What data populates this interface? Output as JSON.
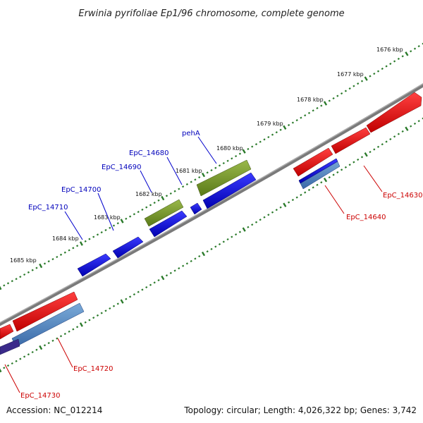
{
  "title": "Erwinia pyrifoliae Ep1/96 chromosome, complete genome",
  "accession": "Accession: NC_012214",
  "summary": "Topology: circular; Length: 4,026,322 bp; Genes: 3,742",
  "kbp_ticks": [
    "1676 kbp",
    "1677 kbp",
    "1678 kbp",
    "1679 kbp",
    "1680 kbp",
    "1681 kbp",
    "1682 kbp",
    "1683 kbp",
    "1684 kbp",
    "1685 kbp"
  ],
  "genes_upper": [
    {
      "label": "pehA",
      "label_color": "#0000bb",
      "fill": "#7a9a2a"
    },
    {
      "label": "EpC_14680",
      "label_color": "#0000bb",
      "fill": "#0000dd"
    },
    {
      "label": "EpC_14690",
      "label_color": "#0000bb",
      "fill": "#7a9a2a"
    },
    {
      "label": "EpC_14700",
      "label_color": "#0000bb",
      "fill": "#0000dd"
    },
    {
      "label": "EpC_14710",
      "label_color": "#0000bb",
      "fill": "#0000dd"
    }
  ],
  "genes_lower": [
    {
      "label": "EpC_14630",
      "label_color": "#cc0000",
      "fill": "#ee0000"
    },
    {
      "label": "EpC_14640",
      "label_color": "#cc0000",
      "fill": "#4a7fbf"
    },
    {
      "label": "EpC_14720",
      "label_color": "#cc0000",
      "fill": "#ee0000"
    },
    {
      "label": "EpC_14730",
      "label_color": "#cc0000",
      "fill": "#4a7fbf"
    }
  ],
  "colors": {
    "backbone": "#777777",
    "tick": "#2a7a2a",
    "blue_cds": "#0000dd",
    "olive_cds": "#7a9a2a",
    "red_cds": "#ee0000",
    "steel_cds": "#4a7fbf"
  }
}
